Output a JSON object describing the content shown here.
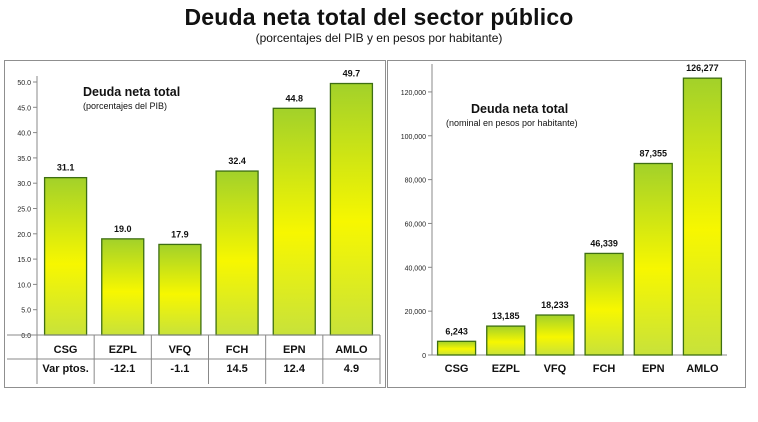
{
  "title": "Deuda neta total del sector público",
  "subtitle": "(porcentajes del PIB y en pesos por habitante)",
  "chart_data": [
    {
      "type": "bar",
      "title": "Deuda neta total",
      "subtitle": "(porcentajes del PIB)",
      "categories": [
        "CSG",
        "EZPL",
        "VFQ",
        "FCH",
        "EPN",
        "AMLO"
      ],
      "values": [
        31.1,
        19.0,
        17.9,
        32.4,
        44.8,
        49.7
      ],
      "value_labels": [
        "31.1",
        "19.0",
        "17.9",
        "32.4",
        "44.8",
        "49.7"
      ],
      "ylim": [
        0,
        50
      ],
      "yticks": [
        0,
        5,
        10,
        15,
        20,
        25,
        30,
        35,
        40,
        45,
        50
      ],
      "ytick_labels": [
        "0.0",
        "5.0",
        "10.0",
        "15.0",
        "20.0",
        "25.0",
        "30.0",
        "35.0",
        "40.0",
        "45.0",
        "50.0"
      ],
      "grid": false,
      "table_row": {
        "label": "Var ptos.",
        "values": [
          "-12.1",
          "-1.1",
          "14.5",
          "12.4",
          "4.9"
        ]
      },
      "colors": {
        "bar_top": "#a2d12a",
        "bar_mid": "#f7f700",
        "bar_border": "#3d6e12"
      }
    },
    {
      "type": "bar",
      "title": "Deuda neta total",
      "subtitle": "(nominal en pesos por habitante)",
      "categories": [
        "CSG",
        "EZPL",
        "VFQ",
        "FCH",
        "EPN",
        "AMLO"
      ],
      "values": [
        6243,
        13185,
        18233,
        46339,
        87355,
        126277
      ],
      "value_labels": [
        "6,243",
        "13,185",
        "18,233",
        "46,339",
        "87,355",
        "126,277"
      ],
      "ylim": [
        0,
        130000
      ],
      "yticks": [
        0,
        20000,
        40000,
        60000,
        80000,
        100000,
        120000
      ],
      "ytick_labels": [
        "0",
        "20,000",
        "40,000",
        "60,000",
        "80,000",
        "100,000",
        "120,000"
      ],
      "grid": false,
      "colors": {
        "bar_top": "#a2d12a",
        "bar_mid": "#f7f700",
        "bar_border": "#3d6e12"
      }
    }
  ]
}
